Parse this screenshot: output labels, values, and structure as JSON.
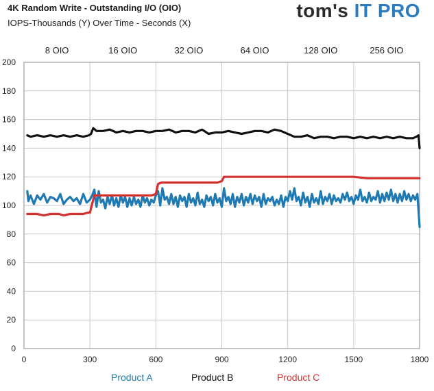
{
  "header": {
    "brand_part1": "tom's",
    "brand_part2": "IT PRO"
  },
  "chart_data": {
    "type": "line",
    "title": "4K Random Write - Outstanding I/O (OIO)",
    "subtitle": "IOPS-Thousands (Y) Over Time - Seconds (X)",
    "xlim": [
      0,
      1800
    ],
    "ylim": [
      0,
      200
    ],
    "x_ticks": [
      0,
      300,
      600,
      900,
      1200,
      1500,
      1800
    ],
    "y_ticks": [
      0,
      20,
      40,
      60,
      80,
      100,
      120,
      140,
      160,
      180,
      200
    ],
    "grid": true,
    "legend_position": "bottom",
    "phase_labels": [
      {
        "label": "8 OIO",
        "x_start": 0,
        "x_end": 300
      },
      {
        "label": "16 OIO",
        "x_start": 300,
        "x_end": 600
      },
      {
        "label": "32  OIO",
        "x_start": 600,
        "x_end": 900
      },
      {
        "label": "64 OIO",
        "x_start": 900,
        "x_end": 1200
      },
      {
        "label": "128 OIO",
        "x_start": 1200,
        "x_end": 1500
      },
      {
        "label": "256 OIO",
        "x_start": 1500,
        "x_end": 1800
      }
    ],
    "series": [
      {
        "name": "Product A",
        "color": "#1f7ab3",
        "points": [
          [
            15,
            110
          ],
          [
            20,
            103
          ],
          [
            30,
            107
          ],
          [
            45,
            101
          ],
          [
            60,
            107
          ],
          [
            75,
            104
          ],
          [
            90,
            108
          ],
          [
            105,
            102
          ],
          [
            120,
            106
          ],
          [
            135,
            105
          ],
          [
            150,
            103
          ],
          [
            165,
            108
          ],
          [
            180,
            101
          ],
          [
            195,
            104
          ],
          [
            210,
            106
          ],
          [
            225,
            103
          ],
          [
            240,
            105
          ],
          [
            255,
            101
          ],
          [
            270,
            108
          ],
          [
            285,
            102
          ],
          [
            300,
            104
          ],
          [
            310,
            107
          ],
          [
            320,
            111
          ],
          [
            330,
            99
          ],
          [
            340,
            110
          ],
          [
            350,
            102
          ],
          [
            360,
            104
          ],
          [
            370,
            98
          ],
          [
            380,
            106
          ],
          [
            390,
            101
          ],
          [
            400,
            107
          ],
          [
            410,
            100
          ],
          [
            420,
            105
          ],
          [
            430,
            99
          ],
          [
            440,
            107
          ],
          [
            450,
            102
          ],
          [
            460,
            106
          ],
          [
            470,
            99
          ],
          [
            480,
            105
          ],
          [
            490,
            100
          ],
          [
            500,
            106
          ],
          [
            510,
            101
          ],
          [
            520,
            104
          ],
          [
            530,
            99
          ],
          [
            540,
            107
          ],
          [
            550,
            102
          ],
          [
            560,
            105
          ],
          [
            570,
            100
          ],
          [
            580,
            104
          ],
          [
            590,
            102
          ],
          [
            600,
            107
          ],
          [
            610,
            110
          ],
          [
            620,
            100
          ],
          [
            630,
            112
          ],
          [
            640,
            104
          ],
          [
            650,
            106
          ],
          [
            660,
            101
          ],
          [
            670,
            108
          ],
          [
            680,
            101
          ],
          [
            690,
            106
          ],
          [
            700,
            99
          ],
          [
            710,
            107
          ],
          [
            720,
            103
          ],
          [
            730,
            106
          ],
          [
            740,
            99
          ],
          [
            750,
            108
          ],
          [
            760,
            102
          ],
          [
            770,
            105
          ],
          [
            780,
            100
          ],
          [
            790,
            109
          ],
          [
            800,
            101
          ],
          [
            810,
            104
          ],
          [
            820,
            99
          ],
          [
            830,
            107
          ],
          [
            840,
            103
          ],
          [
            850,
            106
          ],
          [
            860,
            100
          ],
          [
            870,
            108
          ],
          [
            880,
            102
          ],
          [
            890,
            105
          ],
          [
            900,
            99
          ],
          [
            910,
            112
          ],
          [
            920,
            103
          ],
          [
            930,
            106
          ],
          [
            940,
            101
          ],
          [
            950,
            108
          ],
          [
            960,
            99
          ],
          [
            970,
            106
          ],
          [
            980,
            102
          ],
          [
            990,
            108
          ],
          [
            1000,
            100
          ],
          [
            1010,
            106
          ],
          [
            1020,
            102
          ],
          [
            1030,
            108
          ],
          [
            1040,
            101
          ],
          [
            1050,
            107
          ],
          [
            1060,
            103
          ],
          [
            1070,
            106
          ],
          [
            1080,
            99
          ],
          [
            1090,
            108
          ],
          [
            1100,
            101
          ],
          [
            1110,
            105
          ],
          [
            1120,
            103
          ],
          [
            1130,
            106
          ],
          [
            1140,
            100
          ],
          [
            1150,
            104
          ],
          [
            1160,
            101
          ],
          [
            1170,
            107
          ],
          [
            1180,
            99
          ],
          [
            1190,
            106
          ],
          [
            1200,
            103
          ],
          [
            1210,
            110
          ],
          [
            1220,
            104
          ],
          [
            1230,
            112
          ],
          [
            1240,
            103
          ],
          [
            1250,
            106
          ],
          [
            1260,
            100
          ],
          [
            1270,
            109
          ],
          [
            1280,
            102
          ],
          [
            1290,
            106
          ],
          [
            1300,
            99
          ],
          [
            1310,
            108
          ],
          [
            1320,
            102
          ],
          [
            1330,
            105
          ],
          [
            1340,
            101
          ],
          [
            1350,
            110
          ],
          [
            1360,
            101
          ],
          [
            1370,
            106
          ],
          [
            1380,
            103
          ],
          [
            1390,
            108
          ],
          [
            1400,
            101
          ],
          [
            1410,
            107
          ],
          [
            1420,
            103
          ],
          [
            1430,
            105
          ],
          [
            1440,
            102
          ],
          [
            1450,
            108
          ],
          [
            1460,
            104
          ],
          [
            1470,
            109
          ],
          [
            1480,
            103
          ],
          [
            1490,
            106
          ],
          [
            1500,
            101
          ],
          [
            1510,
            107
          ],
          [
            1520,
            104
          ],
          [
            1530,
            111
          ],
          [
            1540,
            103
          ],
          [
            1550,
            106
          ],
          [
            1560,
            102
          ],
          [
            1570,
            109
          ],
          [
            1580,
            103
          ],
          [
            1590,
            106
          ],
          [
            1600,
            104
          ],
          [
            1610,
            110
          ],
          [
            1620,
            102
          ],
          [
            1630,
            108
          ],
          [
            1640,
            103
          ],
          [
            1650,
            109
          ],
          [
            1660,
            104
          ],
          [
            1670,
            111
          ],
          [
            1680,
            103
          ],
          [
            1690,
            108
          ],
          [
            1700,
            102
          ],
          [
            1710,
            108
          ],
          [
            1720,
            103
          ],
          [
            1730,
            110
          ],
          [
            1740,
            104
          ],
          [
            1750,
            108
          ],
          [
            1760,
            103
          ],
          [
            1770,
            107
          ],
          [
            1780,
            104
          ],
          [
            1790,
            108
          ],
          [
            1800,
            85
          ]
        ]
      },
      {
        "name": "Product B",
        "color": "#111111",
        "points": [
          [
            15,
            149
          ],
          [
            30,
            148
          ],
          [
            60,
            149
          ],
          [
            90,
            148
          ],
          [
            120,
            149
          ],
          [
            150,
            148
          ],
          [
            180,
            149
          ],
          [
            210,
            148
          ],
          [
            240,
            149
          ],
          [
            270,
            148
          ],
          [
            295,
            149
          ],
          [
            305,
            150
          ],
          [
            315,
            154
          ],
          [
            330,
            152
          ],
          [
            360,
            152
          ],
          [
            390,
            153
          ],
          [
            420,
            151
          ],
          [
            450,
            152
          ],
          [
            480,
            151
          ],
          [
            510,
            152
          ],
          [
            540,
            152
          ],
          [
            570,
            151
          ],
          [
            600,
            152
          ],
          [
            630,
            152
          ],
          [
            660,
            153
          ],
          [
            690,
            151
          ],
          [
            720,
            152
          ],
          [
            750,
            152
          ],
          [
            780,
            151
          ],
          [
            810,
            153
          ],
          [
            840,
            150
          ],
          [
            870,
            151
          ],
          [
            900,
            151
          ],
          [
            930,
            152
          ],
          [
            960,
            151
          ],
          [
            990,
            150
          ],
          [
            1020,
            151
          ],
          [
            1050,
            152
          ],
          [
            1080,
            152
          ],
          [
            1110,
            151
          ],
          [
            1140,
            153
          ],
          [
            1170,
            152
          ],
          [
            1200,
            150
          ],
          [
            1230,
            148
          ],
          [
            1260,
            148
          ],
          [
            1290,
            149
          ],
          [
            1320,
            147
          ],
          [
            1350,
            148
          ],
          [
            1380,
            148
          ],
          [
            1410,
            147
          ],
          [
            1440,
            148
          ],
          [
            1470,
            148
          ],
          [
            1500,
            147
          ],
          [
            1530,
            148
          ],
          [
            1560,
            147
          ],
          [
            1590,
            148
          ],
          [
            1620,
            147
          ],
          [
            1650,
            148
          ],
          [
            1680,
            147
          ],
          [
            1710,
            148
          ],
          [
            1740,
            147
          ],
          [
            1770,
            147
          ],
          [
            1785,
            148
          ],
          [
            1795,
            149
          ],
          [
            1800,
            140
          ]
        ]
      },
      {
        "name": "Product C",
        "color": "#d62f2f",
        "points": [
          [
            15,
            94
          ],
          [
            60,
            94
          ],
          [
            90,
            93
          ],
          [
            120,
            94
          ],
          [
            160,
            94
          ],
          [
            180,
            93
          ],
          [
            210,
            94
          ],
          [
            240,
            94
          ],
          [
            270,
            94
          ],
          [
            290,
            95
          ],
          [
            300,
            95
          ],
          [
            310,
            101
          ],
          [
            320,
            107
          ],
          [
            360,
            107
          ],
          [
            420,
            107
          ],
          [
            480,
            107
          ],
          [
            540,
            107
          ],
          [
            580,
            107
          ],
          [
            600,
            108
          ],
          [
            610,
            115
          ],
          [
            625,
            116
          ],
          [
            660,
            116
          ],
          [
            720,
            116
          ],
          [
            780,
            116
          ],
          [
            840,
            116
          ],
          [
            880,
            116
          ],
          [
            900,
            117
          ],
          [
            910,
            120
          ],
          [
            940,
            120
          ],
          [
            1000,
            120
          ],
          [
            1060,
            120
          ],
          [
            1120,
            120
          ],
          [
            1180,
            120
          ],
          [
            1200,
            120
          ],
          [
            1260,
            120
          ],
          [
            1320,
            120
          ],
          [
            1380,
            120
          ],
          [
            1440,
            120
          ],
          [
            1500,
            120
          ],
          [
            1560,
            119
          ],
          [
            1620,
            119
          ],
          [
            1680,
            119
          ],
          [
            1740,
            119
          ],
          [
            1780,
            119
          ],
          [
            1800,
            119
          ]
        ]
      }
    ]
  }
}
